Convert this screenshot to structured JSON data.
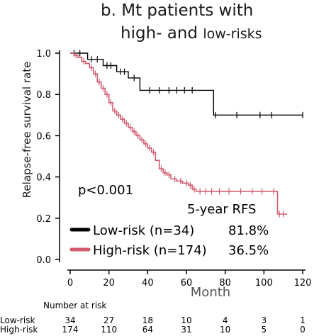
{
  "title": {
    "line1": "b. Mt patients with",
    "line2_part1": "high- and ",
    "line2_part2": "low-risks"
  },
  "chart_data": {
    "type": "line",
    "title": "b. Mt patients with high- and low-risks",
    "xlabel": "Month",
    "ylabel": "Relapse-free survival rate",
    "xlim": [
      0,
      120
    ],
    "ylim": [
      0,
      1.0
    ],
    "xticks": [
      0,
      20,
      40,
      60,
      80,
      100,
      120
    ],
    "yticks": [
      0.0,
      0.2,
      0.4,
      0.6,
      0.8,
      1.0
    ],
    "grid": false,
    "annotation": "p<0.001",
    "legend": {
      "title": "5-year RFS",
      "placement": "bottom-left",
      "entries": [
        {
          "label": "Low-risk (n=34)",
          "value": "81.8%"
        },
        {
          "label": "High-risk (n=174)",
          "value": "36.5%"
        }
      ]
    },
    "series": [
      {
        "name": "Low-risk",
        "color": "#000000",
        "steps": [
          [
            0,
            1.0
          ],
          [
            9,
            0.97
          ],
          [
            17,
            0.94
          ],
          [
            24,
            0.91
          ],
          [
            30,
            0.88
          ],
          [
            36,
            0.82
          ],
          [
            74,
            0.7
          ],
          [
            120,
            0.7
          ]
        ],
        "censored": [
          [
            2,
            1.0
          ],
          [
            5,
            1.0
          ],
          [
            11,
            0.97
          ],
          [
            14,
            0.97
          ],
          [
            19,
            0.94
          ],
          [
            21,
            0.94
          ],
          [
            26,
            0.91
          ],
          [
            28,
            0.91
          ],
          [
            33,
            0.88
          ],
          [
            41,
            0.82
          ],
          [
            46,
            0.82
          ],
          [
            51,
            0.82
          ],
          [
            55,
            0.82
          ],
          [
            59,
            0.82
          ],
          [
            63,
            0.82
          ],
          [
            75,
            0.7
          ],
          [
            86,
            0.7
          ],
          [
            98,
            0.7
          ],
          [
            104,
            0.7
          ],
          [
            120,
            0.7
          ]
        ]
      },
      {
        "name": "High-risk",
        "color": "#d05a6e",
        "steps": [
          [
            0,
            1.0
          ],
          [
            2,
            0.99
          ],
          [
            4,
            0.98
          ],
          [
            6,
            0.96
          ],
          [
            8,
            0.95
          ],
          [
            10,
            0.93
          ],
          [
            12,
            0.9
          ],
          [
            14,
            0.86
          ],
          [
            16,
            0.83
          ],
          [
            18,
            0.8
          ],
          [
            20,
            0.76
          ],
          [
            22,
            0.72
          ],
          [
            24,
            0.7
          ],
          [
            26,
            0.68
          ],
          [
            28,
            0.66
          ],
          [
            30,
            0.64
          ],
          [
            32,
            0.62
          ],
          [
            34,
            0.6
          ],
          [
            36,
            0.58
          ],
          [
            38,
            0.56
          ],
          [
            40,
            0.54
          ],
          [
            42,
            0.52
          ],
          [
            44,
            0.48
          ],
          [
            46,
            0.44
          ],
          [
            48,
            0.42
          ],
          [
            50,
            0.41
          ],
          [
            52,
            0.39
          ],
          [
            55,
            0.38
          ],
          [
            58,
            0.37
          ],
          [
            61,
            0.36
          ],
          [
            63,
            0.34
          ],
          [
            65,
            0.33
          ],
          [
            107,
            0.22
          ],
          [
            112,
            0.22
          ]
        ],
        "censored": [
          [
            3,
            0.99
          ],
          [
            7,
            0.96
          ],
          [
            11,
            0.93
          ],
          [
            13,
            0.9
          ],
          [
            15,
            0.86
          ],
          [
            17,
            0.83
          ],
          [
            19,
            0.8
          ],
          [
            21,
            0.76
          ],
          [
            23,
            0.72
          ],
          [
            25,
            0.7
          ],
          [
            27,
            0.68
          ],
          [
            29,
            0.66
          ],
          [
            31,
            0.64
          ],
          [
            33,
            0.62
          ],
          [
            35,
            0.6
          ],
          [
            37,
            0.58
          ],
          [
            39,
            0.56
          ],
          [
            41,
            0.54
          ],
          [
            43,
            0.52
          ],
          [
            47,
            0.44
          ],
          [
            49,
            0.42
          ],
          [
            51,
            0.41
          ],
          [
            54,
            0.39
          ],
          [
            57,
            0.38
          ],
          [
            60,
            0.37
          ],
          [
            62,
            0.36
          ],
          [
            64,
            0.34
          ],
          [
            67,
            0.33
          ],
          [
            70,
            0.33
          ],
          [
            73,
            0.33
          ],
          [
            77,
            0.33
          ],
          [
            82,
            0.33
          ],
          [
            88,
            0.33
          ],
          [
            94,
            0.33
          ],
          [
            99,
            0.33
          ],
          [
            105,
            0.33
          ],
          [
            108,
            0.22
          ],
          [
            110,
            0.22
          ]
        ]
      }
    ],
    "risk_table": {
      "title": "Number at risk",
      "times": [
        0,
        20,
        40,
        60,
        80,
        100,
        120
      ],
      "rows": [
        {
          "label": "Low-risk",
          "counts": [
            "34",
            "27",
            "18",
            "10",
            "4",
            "3",
            "1"
          ]
        },
        {
          "label": "High-risk",
          "counts": [
            "174",
            "110",
            "64",
            "31",
            "10",
            "5",
            "0"
          ]
        }
      ]
    }
  }
}
